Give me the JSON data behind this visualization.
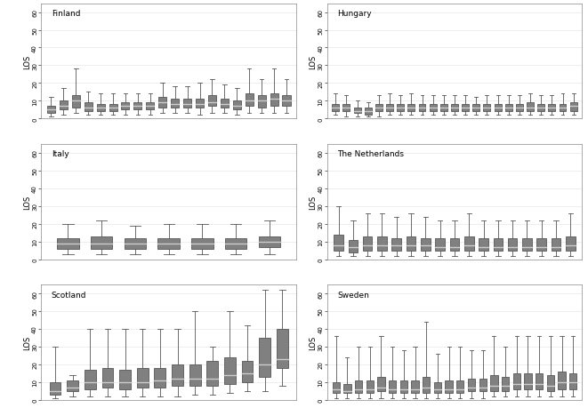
{
  "countries": [
    "Finland",
    "Hungary",
    "Italy",
    "The Netherlands",
    "Scotland",
    "Sweden"
  ],
  "ylim": [
    0,
    65
  ],
  "yticks": [
    0,
    10,
    20,
    30,
    40,
    50,
    60
  ],
  "ylabel": "LOS",
  "box_facecolor": "#808080",
  "box_edgecolor": "#555555",
  "median_color": "#cccccc",
  "whisker_color": "#555555",
  "bg_color": "#ffffff",
  "panel_bg": "#ffffff",
  "grid_color": "#e8e8e8",
  "finland_boxes": [
    [
      1,
      3,
      5,
      7,
      12
    ],
    [
      2,
      5,
      7,
      10,
      17
    ],
    [
      3,
      6,
      10,
      13,
      28
    ],
    [
      2,
      4,
      6,
      9,
      15
    ],
    [
      2,
      4,
      6,
      8,
      14
    ],
    [
      2,
      4,
      6,
      8,
      14
    ],
    [
      2,
      5,
      7,
      9,
      14
    ],
    [
      2,
      5,
      7,
      9,
      14
    ],
    [
      2,
      5,
      7,
      9,
      14
    ],
    [
      3,
      6,
      9,
      12,
      20
    ],
    [
      3,
      6,
      8,
      11,
      18
    ],
    [
      3,
      6,
      8,
      11,
      18
    ],
    [
      2,
      6,
      8,
      11,
      20
    ],
    [
      3,
      7,
      9,
      13,
      22
    ],
    [
      3,
      6,
      8,
      11,
      19
    ],
    [
      2,
      5,
      7,
      10,
      17
    ],
    [
      3,
      7,
      10,
      14,
      28
    ],
    [
      3,
      6,
      10,
      13,
      22
    ],
    [
      3,
      7,
      11,
      14,
      28
    ],
    [
      3,
      7,
      10,
      13,
      22
    ]
  ],
  "hungary_boxes": [
    [
      2,
      4,
      6,
      8,
      14
    ],
    [
      1,
      4,
      6,
      8,
      13
    ],
    [
      1,
      3,
      4,
      6,
      10
    ],
    [
      1,
      2,
      4,
      6,
      9
    ],
    [
      1,
      4,
      6,
      8,
      13
    ],
    [
      2,
      4,
      6,
      8,
      14
    ],
    [
      2,
      4,
      6,
      8,
      13
    ],
    [
      2,
      4,
      6,
      8,
      14
    ],
    [
      2,
      4,
      6,
      8,
      13
    ],
    [
      2,
      4,
      6,
      8,
      13
    ],
    [
      2,
      4,
      6,
      8,
      13
    ],
    [
      2,
      4,
      6,
      8,
      13
    ],
    [
      2,
      4,
      6,
      8,
      13
    ],
    [
      2,
      4,
      6,
      8,
      12
    ],
    [
      2,
      4,
      6,
      8,
      13
    ],
    [
      2,
      4,
      6,
      8,
      13
    ],
    [
      2,
      4,
      6,
      8,
      13
    ],
    [
      2,
      4,
      6,
      8,
      13
    ],
    [
      2,
      4,
      6,
      9,
      14
    ],
    [
      2,
      4,
      6,
      8,
      13
    ],
    [
      2,
      4,
      6,
      8,
      13
    ],
    [
      2,
      4,
      6,
      8,
      14
    ],
    [
      2,
      4,
      7,
      9,
      14
    ]
  ],
  "italy_boxes": [
    [
      3,
      6,
      9,
      12,
      20
    ],
    [
      3,
      6,
      9,
      13,
      22
    ],
    [
      3,
      6,
      9,
      12,
      19
    ],
    [
      3,
      6,
      9,
      12,
      20
    ],
    [
      3,
      6,
      9,
      12,
      20
    ],
    [
      3,
      6,
      9,
      12,
      20
    ],
    [
      3,
      7,
      10,
      13,
      22
    ]
  ],
  "netherlands_boxes": [
    [
      2,
      5,
      8,
      14,
      30
    ],
    [
      2,
      4,
      7,
      11,
      22
    ],
    [
      2,
      5,
      8,
      13,
      26
    ],
    [
      2,
      5,
      8,
      13,
      26
    ],
    [
      2,
      5,
      8,
      12,
      24
    ],
    [
      2,
      5,
      8,
      13,
      26
    ],
    [
      2,
      5,
      8,
      12,
      24
    ],
    [
      2,
      5,
      7,
      12,
      22
    ],
    [
      2,
      5,
      7,
      12,
      22
    ],
    [
      2,
      5,
      8,
      13,
      26
    ],
    [
      2,
      5,
      7,
      12,
      22
    ],
    [
      2,
      5,
      7,
      12,
      22
    ],
    [
      2,
      5,
      7,
      12,
      22
    ],
    [
      2,
      5,
      7,
      12,
      22
    ],
    [
      2,
      5,
      7,
      12,
      22
    ],
    [
      2,
      5,
      7,
      12,
      22
    ],
    [
      2,
      5,
      8,
      13,
      26
    ]
  ],
  "scotland_boxes": [
    [
      1,
      3,
      5,
      10,
      30
    ],
    [
      2,
      5,
      7,
      11,
      14
    ],
    [
      2,
      6,
      10,
      17,
      40
    ],
    [
      2,
      7,
      10,
      18,
      40
    ],
    [
      2,
      6,
      10,
      17,
      40
    ],
    [
      2,
      7,
      10,
      18,
      40
    ],
    [
      2,
      7,
      11,
      18,
      40
    ],
    [
      2,
      8,
      12,
      20,
      40
    ],
    [
      3,
      8,
      12,
      20,
      50
    ],
    [
      3,
      8,
      12,
      22,
      30
    ],
    [
      4,
      9,
      14,
      24,
      50
    ],
    [
      5,
      10,
      15,
      22,
      42
    ],
    [
      5,
      13,
      20,
      35,
      62
    ],
    [
      8,
      18,
      23,
      40,
      62
    ]
  ],
  "sweden_boxes": [
    [
      1,
      4,
      6,
      10,
      36
    ],
    [
      1,
      4,
      5,
      9,
      24
    ],
    [
      1,
      4,
      6,
      11,
      30
    ],
    [
      1,
      4,
      6,
      11,
      30
    ],
    [
      1,
      5,
      7,
      13,
      36
    ],
    [
      1,
      4,
      6,
      11,
      30
    ],
    [
      1,
      4,
      6,
      11,
      28
    ],
    [
      1,
      4,
      6,
      11,
      30
    ],
    [
      1,
      4,
      7,
      13,
      44
    ],
    [
      1,
      4,
      6,
      10,
      26
    ],
    [
      1,
      4,
      6,
      11,
      30
    ],
    [
      1,
      4,
      6,
      11,
      30
    ],
    [
      1,
      5,
      7,
      12,
      28
    ],
    [
      1,
      5,
      7,
      12,
      28
    ],
    [
      2,
      5,
      8,
      14,
      36
    ],
    [
      2,
      5,
      8,
      13,
      30
    ],
    [
      2,
      6,
      9,
      15,
      36
    ],
    [
      2,
      6,
      9,
      15,
      36
    ],
    [
      2,
      6,
      9,
      15,
      36
    ],
    [
      2,
      5,
      8,
      14,
      36
    ],
    [
      2,
      6,
      10,
      16,
      36
    ],
    [
      2,
      6,
      10,
      15,
      36
    ]
  ]
}
